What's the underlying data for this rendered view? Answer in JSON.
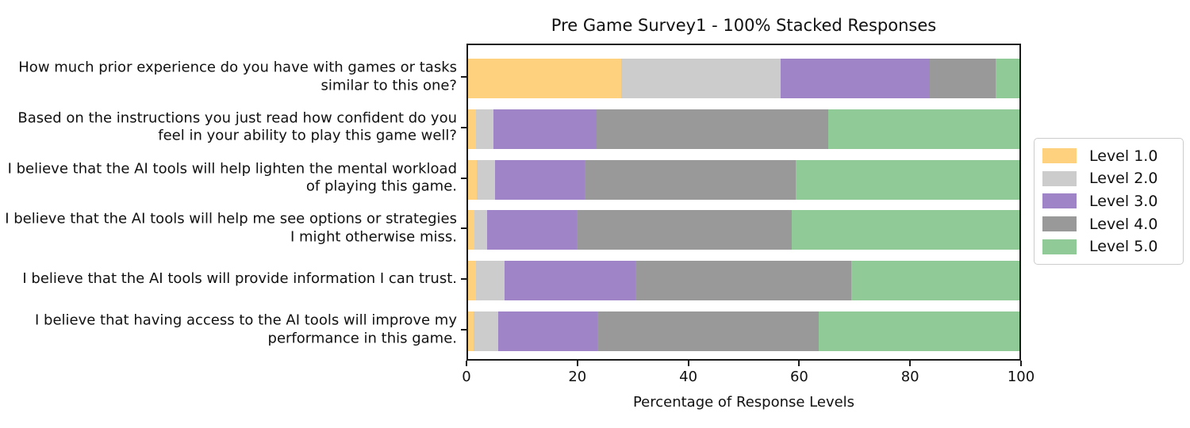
{
  "chart_data": {
    "type": "bar",
    "orientation": "horizontal",
    "stacked": true,
    "normalized_percent": true,
    "title": "Pre Game Survey1 - 100% Stacked Responses",
    "xlabel": "Percentage of Response Levels",
    "xlim": [
      0,
      100
    ],
    "xticks": [
      0,
      20,
      40,
      60,
      80,
      100
    ],
    "grid": false,
    "legend_position": "right-outside-center",
    "categories": [
      "How much prior experience do you have with games or tasks similar to this one?",
      "Based on the instructions you just read how confident do you feel in your ability to play this game well?",
      "I believe that the AI tools will help lighten the mental workload of playing this game.",
      "I believe that the AI tools will help me see options or strategies I might otherwise miss.",
      "I believe that the AI tools will provide information I can trust.",
      "I believe that having access to the AI tools will improve my performance in this game."
    ],
    "series": [
      {
        "name": "Level 1.0",
        "color": "#FDD17E",
        "values": [
          27.8,
          1.5,
          1.6,
          1.1,
          1.4,
          1.0
        ]
      },
      {
        "name": "Level 2.0",
        "color": "#CCCCCC",
        "values": [
          28.9,
          3.1,
          3.3,
          2.4,
          5.2,
          4.4
        ]
      },
      {
        "name": "Level 3.0",
        "color": "#9F84C7",
        "values": [
          27.0,
          18.7,
          16.2,
          16.2,
          23.7,
          18.0
        ]
      },
      {
        "name": "Level 4.0",
        "color": "#999999",
        "values": [
          12.0,
          42.0,
          38.3,
          39.0,
          39.2,
          40.2
        ]
      },
      {
        "name": "Level 5.0",
        "color": "#90CA97",
        "values": [
          4.3,
          34.7,
          40.6,
          41.3,
          30.5,
          36.4
        ]
      }
    ]
  }
}
